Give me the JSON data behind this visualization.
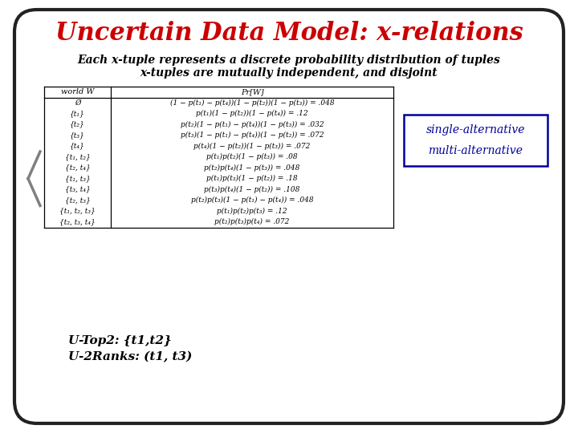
{
  "title": "Uncertain Data Model: x-relations",
  "title_color": "#cc0000",
  "background_color": "#ffffff",
  "border_color": "#222222",
  "subtitle1": "Each x-tuple represents a discrete probability distribution of tuples",
  "subtitle2": "x-tuples are mutually independent, and disjoint",
  "table_header": [
    "world W",
    "Pr[W]"
  ],
  "table_rows": [
    [
      "Ø",
      "(1 − p(t₁) − p(t₄))(1 − p(t₂))(1 − p(t₃)) = .048"
    ],
    [
      "{t₁}",
      "p(t₁)(1 − p(t₂))(1 − p(t₄)) = .12"
    ],
    [
      "{t₂}",
      "p(t₂)(1 − p(t₁) − p(t₄))(1 − p(t₃)) = .032"
    ],
    [
      "{t₃}",
      "p(t₃)(1 − p(t₁) − p(t₄))(1 − p(t₂)) = .072"
    ],
    [
      "{t₄}",
      "p(t₄)(1 − p(t₂))(1 − p(t₃)) = .072"
    ],
    [
      "{t₁, t₂}",
      "p(t₁)p(t₂)(1 − p(t₃)) = .08"
    ],
    [
      "{t₂, t₄}",
      "p(t₂)p(t₄)(1 − p(t₃)) = .048"
    ],
    [
      "{t₁, t₃}",
      "p(t₁)p(t₃)(1 − p(t₂)) = .18"
    ],
    [
      "{t₃, t₄}",
      "p(t₃)p(t₄)(1 − p(t₂)) = .108"
    ],
    [
      "{t₂, t₃}",
      "p(t₂)p(t₃)(1 − p(t₁) − p(t₄)) = .048"
    ],
    [
      "{t₁, t₂, t₃}",
      "p(t₁)p(t₂)p(t₃) = .12"
    ],
    [
      "{t₂, t₃, t₄}",
      "p(t₂)p(t₃)p(t₄) = .072"
    ]
  ],
  "legend_single": "single-alternative",
  "legend_multi": "multi-alternative",
  "legend_color": "#000099",
  "bottom_text1": "U-Top2: {t1,t2}",
  "bottom_text2": "U-2Ranks: (t1, t3)"
}
